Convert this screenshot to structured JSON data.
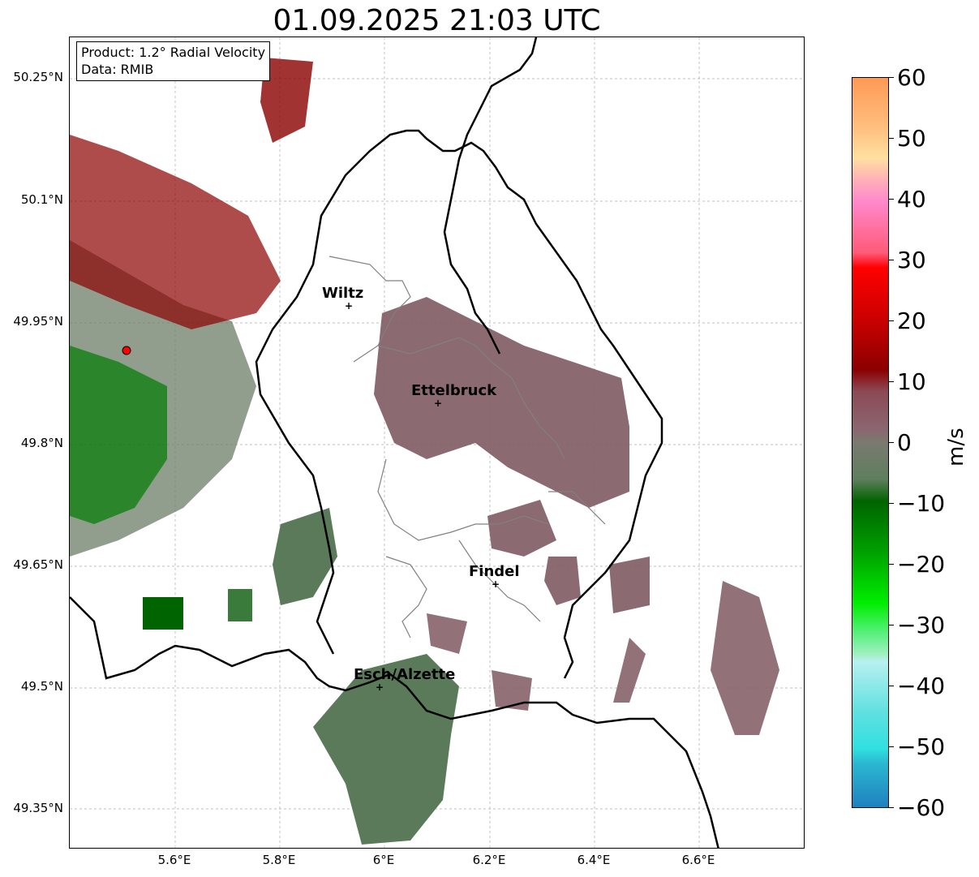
{
  "title": "01.09.2025 21:03 UTC",
  "info": {
    "product": "Product: 1.2° Radial Velocity",
    "data_source": "Data: RMIB"
  },
  "map": {
    "lat_labels": [
      "50.25°N",
      "50.1°N",
      "49.95°N",
      "49.8°N",
      "49.65°N",
      "49.5°N",
      "49.35°N"
    ],
    "lon_labels": [
      "5.6°E",
      "5.8°E",
      "6°E",
      "6.2°E",
      "6.4°E",
      "6.6°E"
    ],
    "cities": [
      {
        "name": "Wiltz"
      },
      {
        "name": "Ettelbruck"
      },
      {
        "name": "Findel"
      },
      {
        "name": "Esch/Alzette"
      }
    ],
    "radar_site_color": "#ff0000",
    "border_color": "#000000",
    "grid": true
  },
  "colorbar": {
    "unit": "m/s",
    "ticks": [
      "60",
      "50",
      "40",
      "30",
      "20",
      "10",
      "0",
      "−10",
      "−20",
      "−30",
      "−40",
      "−50",
      "−60"
    ],
    "min": -60,
    "max": 60,
    "colors": {
      "positive_high": "#ff9955",
      "positive_pink": "#ff88cc",
      "positive_red": "#ff0000",
      "dark_red": "#8b0000",
      "near_zero_pos": "#8b6570",
      "near_zero_neg": "#5e7e5e",
      "dark_green": "#006400",
      "green": "#00dd00",
      "light_green": "#88ee99",
      "cyan": "#30e0e0",
      "blue": "#2080c0"
    }
  }
}
